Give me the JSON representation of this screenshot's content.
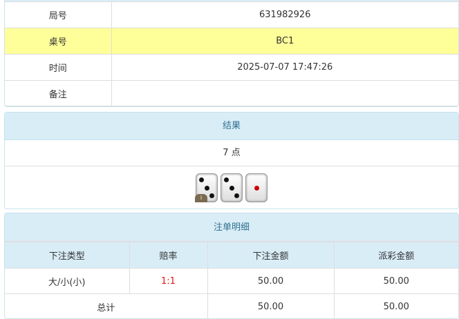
{
  "info": {
    "rows": [
      {
        "label": "局号",
        "value": "631982926"
      },
      {
        "label": "桌号",
        "value": "BC1"
      },
      {
        "label": "时间",
        "value": "2025-07-07 17:47:26"
      },
      {
        "label": "备注",
        "value": ""
      }
    ]
  },
  "result": {
    "title": "结果",
    "points": "7 点",
    "dice": [
      3,
      3,
      1
    ],
    "info_badge": "i"
  },
  "bets": {
    "title": "注单明细",
    "columns": [
      "下注类型",
      "赔率",
      "下注金额",
      "派彩金额"
    ],
    "rows": [
      {
        "type": "大/小(小)",
        "odds": "1:1",
        "amount": "50.00",
        "payout": "50.00"
      }
    ],
    "total": {
      "label": "总计",
      "amount": "50.00",
      "payout": "50.00"
    }
  },
  "colors": {
    "highlight": "#ffff99",
    "header": "#d9edf7",
    "odds": "#e0161b"
  }
}
